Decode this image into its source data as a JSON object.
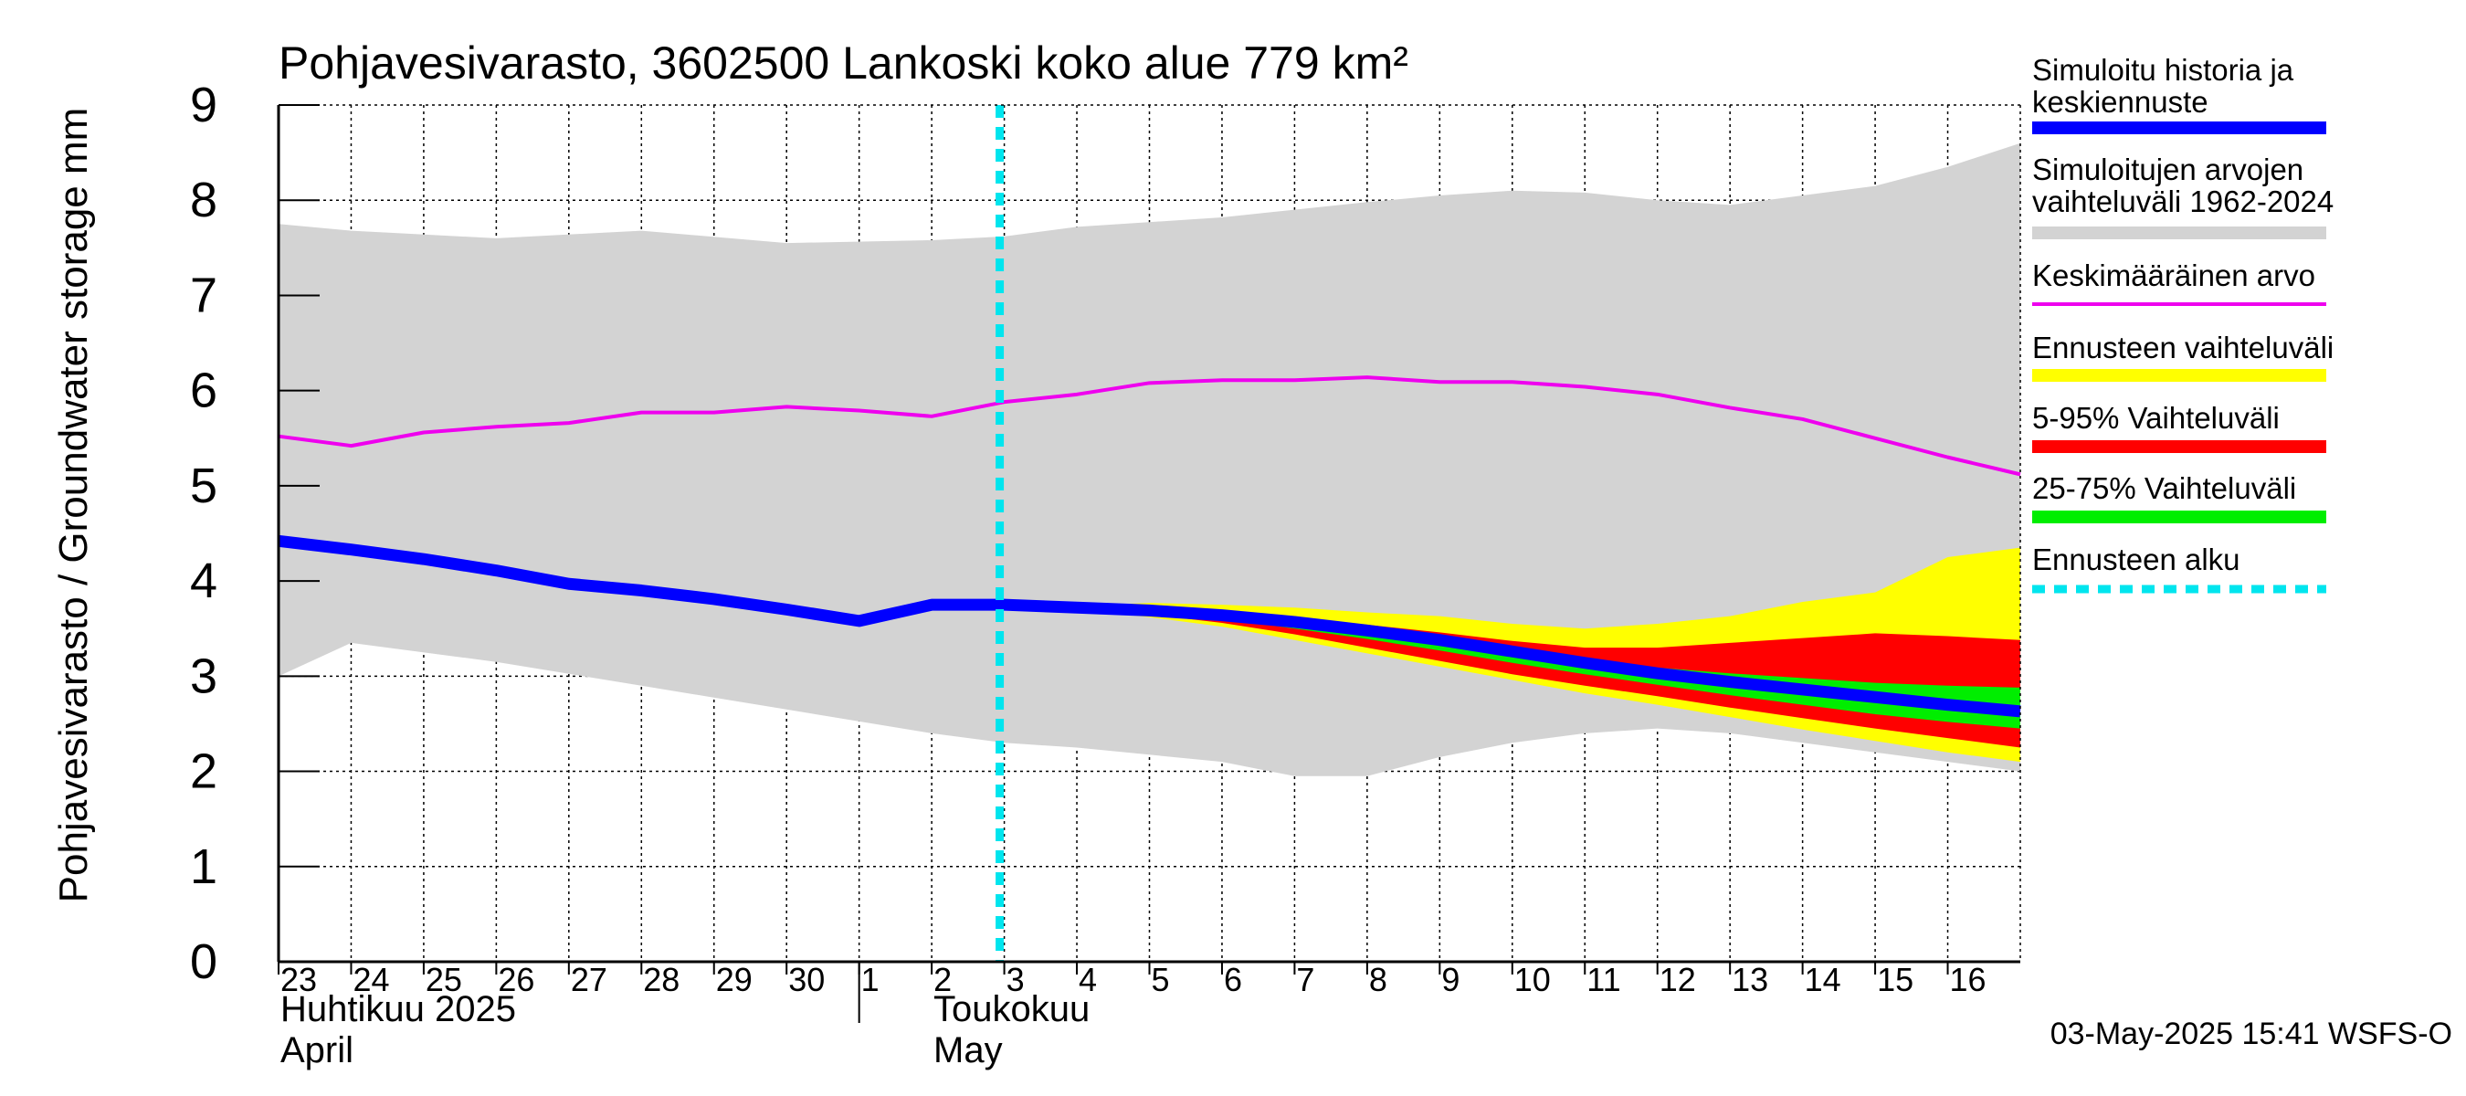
{
  "chart_data": {
    "type": "area",
    "title": "Pohjavesivarasto, 3602500 Lankoski koko alue 779 km²",
    "ylabel": "Pohjavesivarasto / Groundwater storage   mm",
    "ylim": [
      0,
      9
    ],
    "yticks": [
      0,
      1,
      2,
      3,
      4,
      5,
      6,
      7,
      8,
      9
    ],
    "grid": true,
    "x_day_start": 23,
    "x_day_end": 47,
    "x_ticks": [
      {
        "day": 23,
        "label": "23"
      },
      {
        "day": 24,
        "label": "24"
      },
      {
        "day": 25,
        "label": "25"
      },
      {
        "day": 26,
        "label": "26"
      },
      {
        "day": 27,
        "label": "27"
      },
      {
        "day": 28,
        "label": "28"
      },
      {
        "day": 29,
        "label": "29"
      },
      {
        "day": 30,
        "label": "30"
      },
      {
        "day": 31,
        "label": "1"
      },
      {
        "day": 32,
        "label": "2"
      },
      {
        "day": 33,
        "label": "3"
      },
      {
        "day": 34,
        "label": "4"
      },
      {
        "day": 35,
        "label": "5"
      },
      {
        "day": 36,
        "label": "6"
      },
      {
        "day": 37,
        "label": "7"
      },
      {
        "day": 38,
        "label": "8"
      },
      {
        "day": 39,
        "label": "9"
      },
      {
        "day": 40,
        "label": "10"
      },
      {
        "day": 41,
        "label": "11"
      },
      {
        "day": 42,
        "label": "12"
      },
      {
        "day": 43,
        "label": "13"
      },
      {
        "day": 44,
        "label": "14"
      },
      {
        "day": 45,
        "label": "15"
      },
      {
        "day": 46,
        "label": "16"
      }
    ],
    "month_labels": {
      "april_fi": "Huhtikuu  2025",
      "april_en": "April",
      "may_fi": "Toukokuu",
      "may_en": "May"
    },
    "forecast_start_day": 33,
    "series": [
      {
        "name": "Simuloitujen arvojen vaihteluväli 1962-2024",
        "kind": "band",
        "color": "#d3d3d3",
        "x": [
          23,
          24,
          26,
          28,
          30,
          32,
          33,
          34,
          36,
          37,
          38,
          39,
          40,
          41,
          42,
          43,
          44,
          45,
          46,
          47
        ],
        "low": [
          3.0,
          3.35,
          3.15,
          2.9,
          2.65,
          2.4,
          2.3,
          2.25,
          2.1,
          1.95,
          1.95,
          2.15,
          2.3,
          2.4,
          2.45,
          2.4,
          2.3,
          2.2,
          2.1,
          2.0
        ],
        "high": [
          7.75,
          7.68,
          7.6,
          7.68,
          7.55,
          7.58,
          7.62,
          7.72,
          7.82,
          7.9,
          7.98,
          8.05,
          8.1,
          8.08,
          8.0,
          7.95,
          8.05,
          8.15,
          8.35,
          8.6
        ]
      },
      {
        "name": "Ennusteen vaihteluväli",
        "kind": "band",
        "color": "#ffff00",
        "x": [
          33,
          34,
          35,
          36,
          37,
          38,
          39,
          40,
          41,
          42,
          43,
          44,
          45,
          46,
          47
        ],
        "low": [
          3.75,
          3.7,
          3.62,
          3.52,
          3.38,
          3.24,
          3.1,
          2.96,
          2.82,
          2.7,
          2.57,
          2.44,
          2.32,
          2.2,
          2.1
        ],
        "high": [
          3.75,
          3.74,
          3.77,
          3.75,
          3.72,
          3.67,
          3.63,
          3.55,
          3.5,
          3.55,
          3.63,
          3.78,
          3.88,
          4.25,
          4.35
        ]
      },
      {
        "name": "5-95% Vaihteluväli",
        "kind": "band",
        "color": "#ff0000",
        "x": [
          33,
          34,
          35,
          36,
          37,
          38,
          39,
          40,
          41,
          42,
          43,
          44,
          45,
          46,
          47
        ],
        "low": [
          3.75,
          3.7,
          3.65,
          3.56,
          3.44,
          3.3,
          3.16,
          3.02,
          2.9,
          2.79,
          2.67,
          2.56,
          2.45,
          2.35,
          2.25
        ],
        "high": [
          3.75,
          3.72,
          3.72,
          3.66,
          3.6,
          3.54,
          3.46,
          3.37,
          3.3,
          3.3,
          3.35,
          3.4,
          3.45,
          3.42,
          3.38
        ]
      },
      {
        "name": "25-75% Vaihteluväli",
        "kind": "band",
        "color": "#00ee00",
        "x": [
          33,
          34,
          35,
          36,
          37,
          38,
          39,
          40,
          41,
          42,
          43,
          44,
          45,
          46,
          47
        ],
        "low": [
          3.75,
          3.71,
          3.67,
          3.6,
          3.5,
          3.39,
          3.27,
          3.14,
          3.02,
          2.91,
          2.8,
          2.7,
          2.6,
          2.52,
          2.45
        ],
        "high": [
          3.75,
          3.71,
          3.69,
          3.64,
          3.56,
          3.47,
          3.37,
          3.27,
          3.17,
          3.09,
          3.03,
          2.98,
          2.93,
          2.9,
          2.88
        ]
      },
      {
        "name": "Keskimääräinen arvo",
        "kind": "line",
        "color": "#ee00ee",
        "width": 4,
        "x": [
          23,
          24,
          25,
          26,
          27,
          28,
          29,
          30,
          31,
          32,
          33,
          34,
          35,
          36,
          37,
          38,
          39,
          40,
          41,
          42,
          43,
          44,
          45,
          46,
          47
        ],
        "y": [
          5.52,
          5.42,
          5.56,
          5.62,
          5.66,
          5.77,
          5.77,
          5.83,
          5.79,
          5.73,
          5.88,
          5.96,
          6.08,
          6.11,
          6.11,
          6.14,
          6.09,
          6.09,
          6.04,
          5.96,
          5.82,
          5.7,
          5.5,
          5.3,
          5.12
        ]
      },
      {
        "name": "Simuloitu historia ja keskiennuste",
        "kind": "line",
        "color": "#0000ff",
        "width": 13,
        "x": [
          23,
          24,
          25,
          26,
          27,
          28,
          29,
          30,
          31,
          32,
          33,
          34,
          35,
          36,
          37,
          38,
          39,
          40,
          41,
          42,
          43,
          44,
          45,
          46,
          47
        ],
        "y": [
          4.42,
          4.33,
          4.23,
          4.11,
          3.97,
          3.9,
          3.81,
          3.7,
          3.58,
          3.75,
          3.75,
          3.72,
          3.69,
          3.64,
          3.57,
          3.48,
          3.38,
          3.26,
          3.14,
          3.03,
          2.94,
          2.86,
          2.78,
          2.7,
          2.63
        ]
      }
    ],
    "legend": {
      "position": "right",
      "items": [
        {
          "line1": "Simuloitu historia ja",
          "line2": "keskiennuste",
          "color": "#0000ff",
          "style": "thick"
        },
        {
          "line1": "Simuloitujen arvojen",
          "line2": "vaihteluväli 1962-2024",
          "color": "#d3d3d3",
          "style": "thick"
        },
        {
          "line1": "Keskimääräinen arvo",
          "line2": "",
          "color": "#ee00ee",
          "style": "thin"
        },
        {
          "line1": "Ennusteen vaihteluväli",
          "line2": "",
          "color": "#ffff00",
          "style": "thick"
        },
        {
          "line1": "5-95% Vaihteluväli",
          "line2": "",
          "color": "#ff0000",
          "style": "thick"
        },
        {
          "line1": "25-75% Vaihteluväli",
          "line2": "",
          "color": "#00ee00",
          "style": "thick"
        },
        {
          "line1": "Ennusteen alku",
          "line2": "",
          "color": "#00e5ee",
          "style": "dashed"
        }
      ]
    },
    "footer": "03-May-2025 15:41 WSFS-O"
  }
}
